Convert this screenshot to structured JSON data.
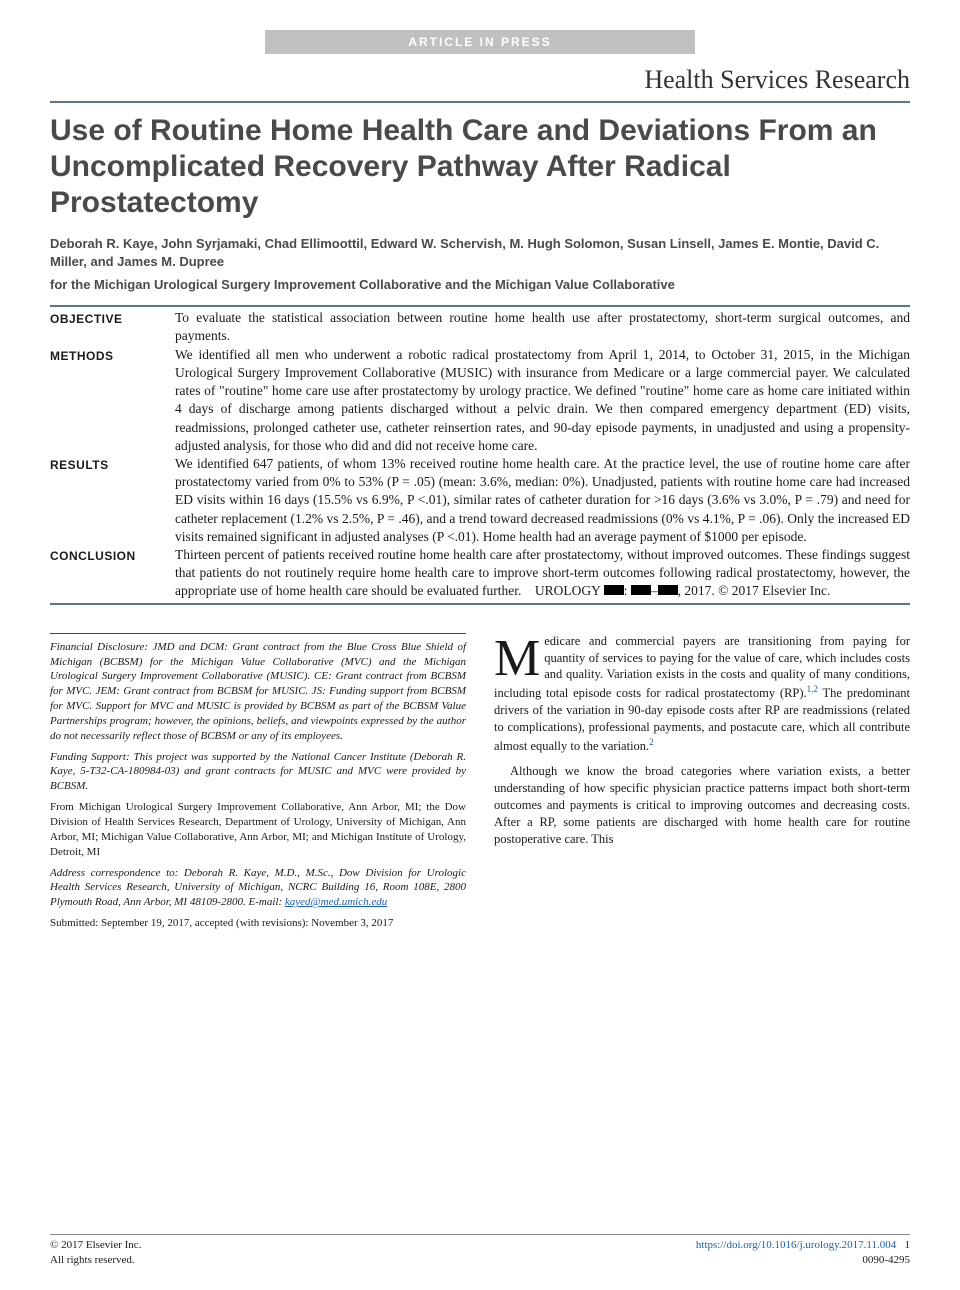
{
  "banner": "ARTICLE IN PRESS",
  "section_header": "Health Services Research",
  "title": "Use of Routine Home Health Care and Deviations From an Uncomplicated Recovery Pathway After Radical Prostatectomy",
  "authors": "Deborah R. Kaye, John Syrjamaki, Chad Ellimoottil, Edward W. Schervish, M. Hugh Solomon, Susan Linsell, James E. Montie, David C. Miller, and James M. Dupree",
  "affiliation": "for the Michigan Urological Surgery Improvement Collaborative and the Michigan Value Collaborative",
  "abstract": {
    "objective": {
      "label": "OBJECTIVE",
      "text": "To evaluate the statistical association between routine home health use after prostatectomy, short-term surgical outcomes, and payments."
    },
    "methods": {
      "label": "METHODS",
      "text": "We identified all men who underwent a robotic radical prostatectomy from April 1, 2014, to October 31, 2015, in the Michigan Urological Surgery Improvement Collaborative (MUSIC) with insurance from Medicare or a large commercial payer. We calculated rates of \"routine\" home care use after prostatectomy by urology practice. We defined \"routine\" home care as home care initiated within 4 days of discharge among patients discharged without a pelvic drain. We then compared emergency department (ED) visits, readmissions, prolonged catheter use, catheter reinsertion rates, and 90-day episode payments, in unadjusted and using a propensity-adjusted analysis, for those who did and did not receive home care."
    },
    "results": {
      "label": "RESULTS",
      "text": "We identified 647 patients, of whom 13% received routine home health care. At the practice level, the use of routine home care after prostatectomy varied from 0% to 53% (P = .05) (mean: 3.6%, median: 0%). Unadjusted, patients with routine home care had increased ED visits within 16 days (15.5% vs 6.9%, P <.01), similar rates of catheter duration for >16 days (3.6% vs 3.0%, P = .79) and need for catheter replacement (1.2% vs 2.5%, P = .46), and a trend toward decreased readmissions (0% vs 4.1%, P = .06). Only the increased ED visits remained significant in adjusted analyses (P <.01). Home health had an average payment of $1000 per episode."
    },
    "conclusion": {
      "label": "CONCLUSION",
      "text_pre": "Thirteen percent of patients received routine home health care after prostatectomy, without improved outcomes. These findings suggest that patients do not routinely require home health care to improve short-term outcomes following radical prostatectomy, however, the appropriate use of home health care should be evaluated further. UROLOGY ",
      "text_post": ", 2017. © 2017 Elsevier Inc."
    }
  },
  "footnotes": {
    "disclosure_label": "Financial Disclosure:",
    "disclosure": " JMD and DCM: Grant contract from the Blue Cross Blue Shield of Michigan (BCBSM) for the Michigan Value Collaborative (MVC) and the Michigan Urological Surgery Improvement Collaborative (MUSIC). CE: Grant contract from BCBSM for MVC. JEM: Grant contract from BCBSM for MUSIC. JS: Funding support from BCBSM for MVC. Support for MVC and MUSIC is provided by BCBSM as part of the BCBSM Value Partnerships program; however, the opinions, beliefs, and viewpoints expressed by the author do not necessarily reflect those of BCBSM or any of its employees.",
    "funding_label": "Funding Support:",
    "funding": " This project was supported by the National Cancer Institute (Deborah R. Kaye, 5-T32-CA-180984-03) and grant contracts for MUSIC and MVC were provided by BCBSM.",
    "from": "From Michigan Urological Surgery Improvement Collaborative, Ann Arbor, MI; the Dow Division of Health Services Research, Department of Urology, University of Michigan, Ann Arbor, MI; Michigan Value Collaborative, Ann Arbor, MI; and Michigan Institute of Urology, Detroit, MI",
    "corr_label": "Address correspondence to:",
    "corr": " Deborah R. Kaye, M.D., M.Sc., Dow Division for Urologic Health Services Research, University of Michigan, NCRC Building 16, Room 108E, 2800 Plymouth Road, Ann Arbor, MI 48109-2800. E-mail: ",
    "email": "kayed@med.umich.edu",
    "submitted": "Submitted: September 19, 2017, accepted (with revisions): November 3, 2017"
  },
  "body": {
    "p1_dropcap": "M",
    "p1": "edicare and commercial payers are transitioning from paying for quantity of services to paying for the value of care, which includes costs and quality. Variation exists in the costs and quality of many conditions, including total episode costs for radical prostatectomy (RP).",
    "p1_refs": "1,2",
    "p1_cont": " The predominant drivers of the variation in 90-day episode costs after RP are readmissions (related to complications), professional payments, and postacute care, which all contribute almost equally to the variation.",
    "p1_ref2": "2",
    "p2": "Although we know the broad categories where variation exists, a better understanding of how specific physician practice patterns impact both short-term outcomes and payments is critical to improving outcomes and decreasing costs. After a RP, some patients are discharged with home health care for routine postoperative care. This"
  },
  "footer": {
    "copyright": "© 2017 Elsevier Inc.",
    "rights": "All rights reserved.",
    "doi": "https://doi.org/10.1016/j.urology.2017.11.004",
    "issn": "0090-4295",
    "page": "1"
  },
  "colors": {
    "rule": "#5a7a8a",
    "banner_bg": "#c0c0c0",
    "link": "#1a5fb4",
    "heading_gray": "#4a4a4a"
  }
}
